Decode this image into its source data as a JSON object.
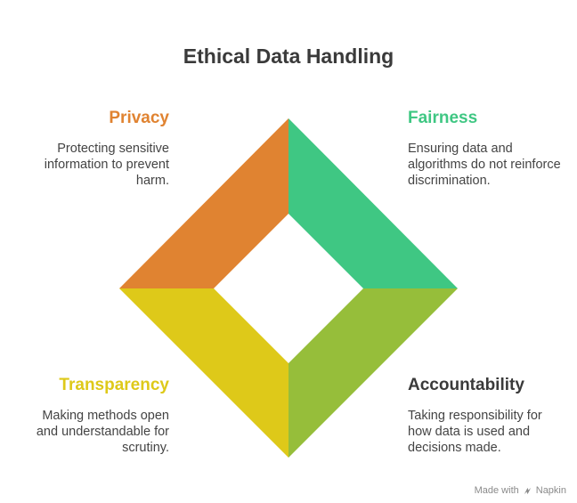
{
  "title": "Ethical Data Handling",
  "quadrants": {
    "privacy": {
      "title": "Privacy",
      "description": "Protecting sensitive information to prevent harm.",
      "color": "#E08331"
    },
    "fairness": {
      "title": "Fairness",
      "description": "Ensuring data and algorithms do not reinforce discrimination.",
      "color": "#3FC783"
    },
    "transparency": {
      "title": "Transparency",
      "description": "Making methods open and understandable for scrutiny.",
      "color": "#DEC919"
    },
    "accountability": {
      "title": "Accountability",
      "description": "Taking responsibility for how data is used and decisions made.",
      "color": "#96BE3A"
    }
  },
  "footer": {
    "made_with": "Made with",
    "brand": "Napkin",
    "icon": "napkin-logo-icon"
  }
}
